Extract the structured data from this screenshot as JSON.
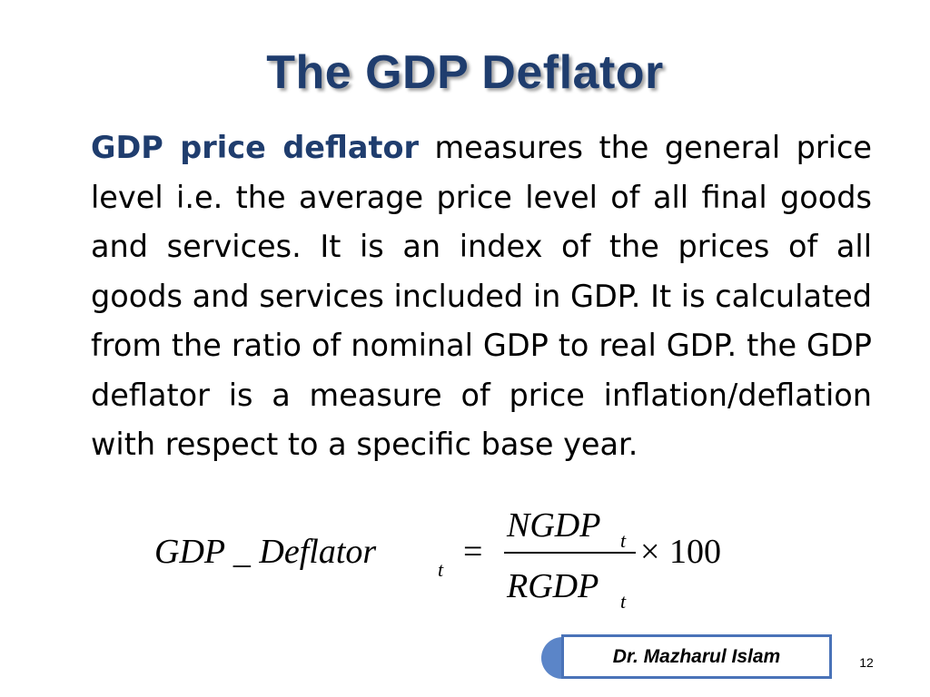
{
  "slide": {
    "title": "The GDP Deflator",
    "body": {
      "term": "GDP price deflator",
      "text": " measures the general price level i.e. the average price level of all final goods and services. It is an index of the prices of all goods and services included in GDP. It is calculated from the ratio of nominal GDP to real GDP. the GDP deflator is a measure of price inflation/deflation with respect to a specific base year."
    },
    "formula": {
      "lhs": "GDP _ Deflator",
      "lhs_subscript": "t",
      "equals": "=",
      "numerator": "NGDP",
      "numerator_subscript": "t",
      "denominator": "RGDP",
      "denominator_subscript": "t",
      "times": "×",
      "constant": "100"
    },
    "footer": {
      "author": "Dr. Mazharul Islam",
      "page_number": "12"
    }
  },
  "colors": {
    "title": "#1f3d6e",
    "term": "#1f3d6e",
    "footer_tab": "#5b85c8",
    "footer_border": "#4a73b8"
  }
}
